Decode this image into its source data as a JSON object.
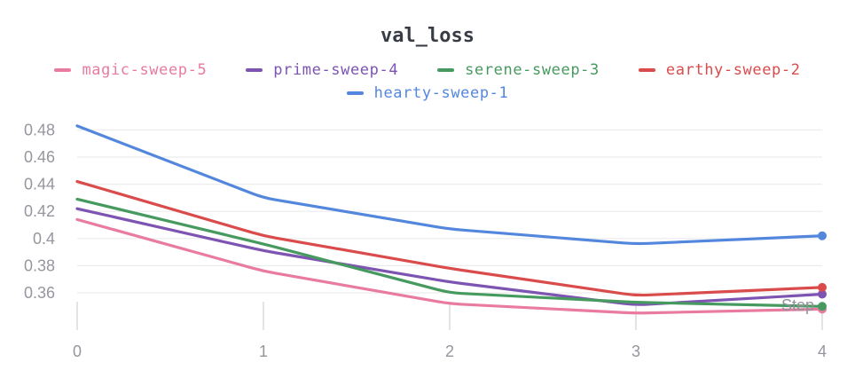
{
  "title": "val_loss",
  "chart_data": {
    "type": "line",
    "title": "val_loss",
    "xlabel": "Step",
    "ylabel": "",
    "x": [
      0,
      1,
      2,
      3,
      4
    ],
    "xtick_labels": [
      "0",
      "1",
      "2",
      "3",
      "4"
    ],
    "ytick_labels": [
      "0.48",
      "0.46",
      "0.44",
      "0.42",
      "0.4",
      "0.38",
      "0.36"
    ],
    "ytick_values": [
      0.48,
      0.46,
      0.44,
      0.42,
      0.4,
      0.38,
      0.36
    ],
    "xlim": [
      0,
      4
    ],
    "ylim": [
      0.333,
      0.491
    ],
    "grid": true,
    "legend_position": "top",
    "end_markers": true,
    "series": [
      {
        "name": "magic-sweep-5",
        "color": "#E87B9F",
        "values": [
          0.414,
          0.376,
          0.352,
          0.345,
          0.348
        ]
      },
      {
        "name": "prime-sweep-4",
        "color": "#7D54B2",
        "values": [
          0.422,
          0.391,
          0.368,
          0.351,
          0.359
        ]
      },
      {
        "name": "serene-sweep-3",
        "color": "#479A5F",
        "values": [
          0.429,
          0.396,
          0.36,
          0.353,
          0.35
        ]
      },
      {
        "name": "earthy-sweep-2",
        "color": "#DA4C4C",
        "values": [
          0.442,
          0.402,
          0.378,
          0.358,
          0.364
        ]
      },
      {
        "name": "hearty-sweep-1",
        "color": "#5387DD",
        "values": [
          0.483,
          0.43,
          0.407,
          0.396,
          0.402
        ]
      }
    ]
  },
  "ui_colors": {
    "background": "#FFFFFF",
    "title_text": "#383C44",
    "tick_text": "#95969E",
    "grid_line": "#ECECEE",
    "tick_mark": "#E4E4E6",
    "axis_label_text": "#8F9299"
  }
}
